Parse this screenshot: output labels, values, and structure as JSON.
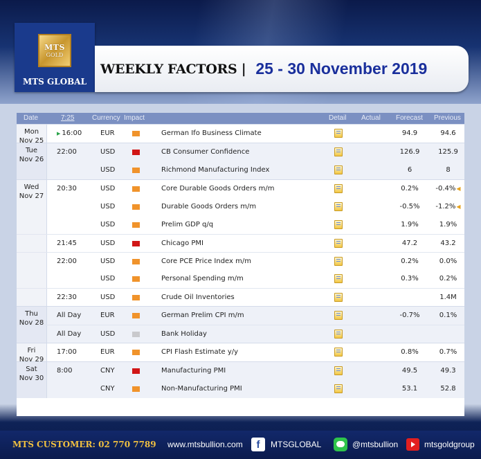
{
  "brand": {
    "emblem_line1": "MTS",
    "emblem_line2": "GOLD",
    "name": "MTS GLOBAL"
  },
  "header": {
    "title": "WEEKLY FACTORS |",
    "dates": "25 - 30 November 2019"
  },
  "table": {
    "columns": {
      "date": "Date",
      "time": "7:25",
      "currency": "Currency",
      "impact": "Impact",
      "detail": "Detail",
      "actual": "Actual",
      "forecast": "Forecast",
      "previous": "Previous"
    },
    "groups": [
      {
        "day": "Mon",
        "date": "Nov 25",
        "rows": [
          {
            "time": "16:00",
            "currency": "EUR",
            "impact": "medium",
            "event": "German Ifo Business Climate",
            "forecast": "94.9",
            "previous": "94.6"
          }
        ]
      },
      {
        "day": "Tue",
        "date": "Nov 26",
        "rows": [
          {
            "time": "22:00",
            "currency": "USD",
            "impact": "high",
            "event": "CB Consumer Confidence",
            "forecast": "126.9",
            "previous": "125.9"
          },
          {
            "time": "",
            "currency": "USD",
            "impact": "medium",
            "event": "Richmond Manufacturing Index",
            "forecast": "6",
            "previous": "8"
          }
        ]
      },
      {
        "day": "Wed",
        "date": "Nov 27",
        "rows": [
          {
            "time": "20:30",
            "currency": "USD",
            "impact": "medium",
            "event": "Core Durable Goods Orders m/m",
            "forecast": "0.2%",
            "previous": "-0.4%"
          },
          {
            "time": "",
            "currency": "USD",
            "impact": "medium",
            "event": "Durable Goods Orders m/m",
            "forecast": "-0.5%",
            "previous": "-1.2%"
          },
          {
            "time": "",
            "currency": "USD",
            "impact": "medium",
            "event": "Prelim GDP q/q",
            "forecast": "1.9%",
            "previous": "1.9%"
          },
          {
            "time": "21:45",
            "currency": "USD",
            "impact": "high",
            "event": "Chicago PMI",
            "forecast": "47.2",
            "previous": "43.2"
          },
          {
            "time": "22:00",
            "currency": "USD",
            "impact": "medium",
            "event": "Core PCE Price Index m/m",
            "forecast": "0.2%",
            "previous": "0.0%"
          },
          {
            "time": "",
            "currency": "USD",
            "impact": "medium",
            "event": "Personal Spending m/m",
            "forecast": "0.3%",
            "previous": "0.2%"
          },
          {
            "time": "22:30",
            "currency": "USD",
            "impact": "medium",
            "event": "Crude Oil Inventories",
            "forecast": "",
            "previous": "1.4M"
          }
        ]
      },
      {
        "day": "Thu",
        "date": "Nov 28",
        "rows": [
          {
            "time": "All Day",
            "currency": "EUR",
            "impact": "medium",
            "event": "German Prelim CPI m/m",
            "forecast": "-0.7%",
            "previous": "0.1%"
          },
          {
            "time": "All Day",
            "currency": "USD",
            "impact": "holiday",
            "event": "Bank Holiday",
            "forecast": "",
            "previous": ""
          }
        ]
      },
      {
        "day": "Fri",
        "date": "Nov 29",
        "rows": [
          {
            "time": "17:00",
            "currency": "EUR",
            "impact": "medium",
            "event": "CPI Flash Estimate y/y",
            "forecast": "0.8%",
            "previous": "0.7%"
          }
        ]
      },
      {
        "day": "Sat",
        "date": "Nov 30",
        "rows": [
          {
            "time": "8:00",
            "currency": "CNY",
            "impact": "high",
            "event": "Manufacturing PMI",
            "forecast": "49.5",
            "previous": "49.3"
          },
          {
            "time": "",
            "currency": "CNY",
            "impact": "medium",
            "event": "Non-Manufacturing PMI",
            "forecast": "53.1",
            "previous": "52.8"
          }
        ]
      }
    ]
  },
  "footer": {
    "customer": "MTS CUSTOMER: 02 770 7789",
    "website": "www.mtsbullion.com",
    "facebook": "MTSGLOBAL",
    "line": "@mtsbullion",
    "youtube": "mtsgoldgroup"
  },
  "colors": {
    "impact_high": "#d11616",
    "impact_medium": "#f0932b",
    "impact_holiday": "#c9c9cc",
    "header_bar": "#7b90c2",
    "title_dates": "#1a2f9c",
    "footer_customer": "#f0c040"
  }
}
